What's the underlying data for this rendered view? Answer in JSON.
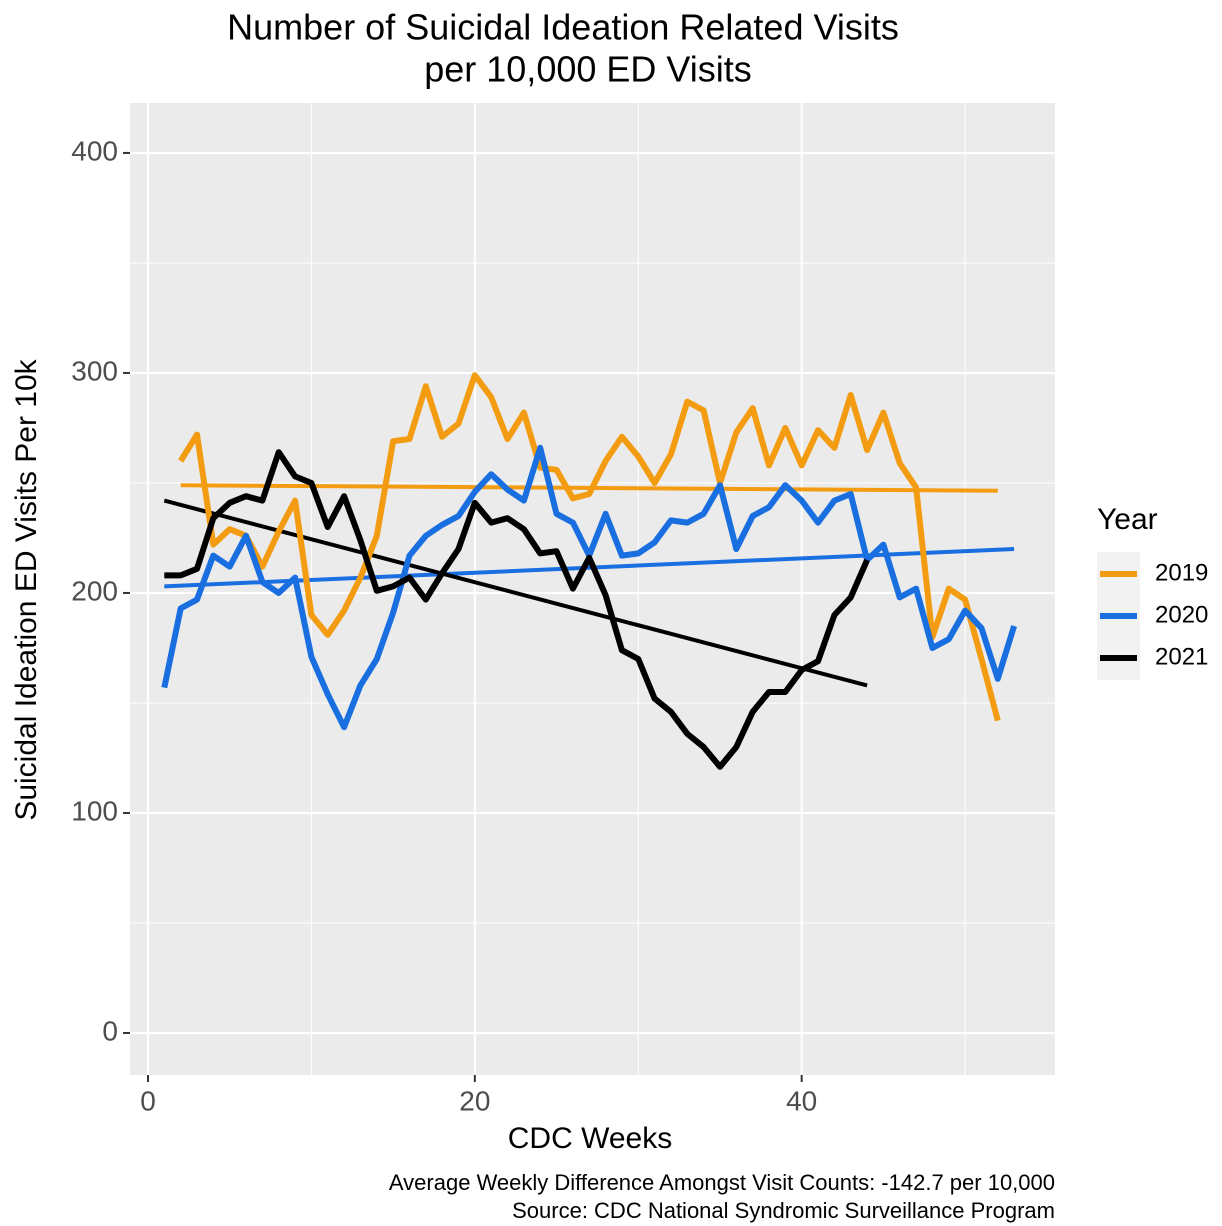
{
  "chart_data": {
    "type": "line",
    "title": [
      "Number of Suicidal Ideation Related Visits",
      "per 10,000 ED Visits"
    ],
    "x_label": "CDC Weeks",
    "y_label": "Suicidal Ideation ED Visits Per 10k",
    "caption": [
      "Average Weekly Difference Amongst Visit Counts: -142.7 per 10,000",
      "Source: CDC National Syndromic Surveillance Program"
    ],
    "legend_title": "Year",
    "legend_position": "right",
    "grid": true,
    "xlim": [
      -1.1,
      55.5
    ],
    "ylim": [
      -19.1,
      422.7
    ],
    "xticks": [
      0,
      20,
      40
    ],
    "yticks": [
      0,
      100,
      200,
      300,
      400
    ],
    "x_minor_ticks": [
      10,
      30,
      50
    ],
    "y_minor_ticks": [
      50,
      150,
      250,
      350
    ],
    "series": [
      {
        "name": "2019",
        "color": "#f39c12",
        "x": [
          2,
          3,
          4,
          5,
          6,
          7,
          8,
          9,
          10,
          11,
          12,
          13,
          14,
          15,
          16,
          17,
          18,
          19,
          20,
          21,
          22,
          23,
          24,
          25,
          26,
          27,
          28,
          29,
          30,
          31,
          32,
          33,
          34,
          35,
          36,
          37,
          38,
          39,
          40,
          41,
          42,
          43,
          44,
          45,
          46,
          47,
          48,
          49,
          50,
          51,
          52
        ],
        "values": [
          260,
          272,
          222,
          229,
          226,
          212,
          228,
          242,
          190,
          181,
          192,
          207,
          226,
          269,
          270,
          294,
          271,
          277,
          299,
          289,
          270,
          282,
          257,
          256,
          243,
          245,
          260,
          271,
          262,
          250,
          263,
          287,
          283,
          250,
          273,
          284,
          258,
          275,
          258,
          274,
          266,
          290,
          265,
          282,
          259,
          248,
          180,
          202,
          197,
          170,
          142
        ],
        "trend": {
          "x": [
            2,
            52
          ],
          "values": [
            249,
            246.5
          ]
        }
      },
      {
        "name": "2020",
        "color": "#1a6fe0",
        "x": [
          1,
          2,
          3,
          4,
          5,
          6,
          7,
          8,
          9,
          10,
          11,
          12,
          13,
          14,
          15,
          16,
          17,
          18,
          19,
          20,
          21,
          22,
          23,
          24,
          25,
          26,
          27,
          28,
          29,
          30,
          31,
          32,
          33,
          34,
          35,
          36,
          37,
          38,
          39,
          40,
          41,
          42,
          43,
          44,
          45,
          46,
          47,
          48,
          49,
          50,
          51,
          52,
          53
        ],
        "values": [
          157,
          193,
          197,
          217,
          212,
          226,
          205,
          200,
          207,
          171,
          154,
          139,
          158,
          170,
          191,
          217,
          226,
          231,
          235,
          246,
          254,
          247,
          242,
          266,
          236,
          232,
          217,
          236,
          217,
          218,
          223,
          233,
          232,
          236,
          249,
          220,
          235,
          239,
          249,
          242,
          232,
          242,
          245,
          215,
          222,
          198,
          202,
          175,
          179,
          192,
          184,
          161,
          185
        ],
        "trend": {
          "x": [
            1,
            53
          ],
          "values": [
            203,
            220
          ]
        }
      },
      {
        "name": "2021",
        "color": "#000000",
        "x": [
          1,
          2,
          3,
          4,
          5,
          6,
          7,
          8,
          9,
          10,
          11,
          12,
          13,
          14,
          15,
          16,
          17,
          18,
          19,
          20,
          21,
          22,
          23,
          24,
          25,
          26,
          27,
          28,
          29,
          30,
          31,
          32,
          33,
          34,
          35,
          36,
          37,
          38,
          39,
          40,
          41,
          42,
          43,
          44
        ],
        "values": [
          208,
          208,
          211,
          234,
          241,
          244,
          242,
          264,
          253,
          250,
          230,
          244,
          224,
          201,
          203,
          207,
          197,
          209,
          220,
          241,
          232,
          234,
          229,
          218,
          219,
          202,
          216,
          199,
          174,
          170,
          152,
          146,
          136,
          130,
          121,
          130,
          146,
          155,
          155,
          165,
          169,
          190,
          198,
          215
        ],
        "trend": {
          "x": [
            1,
            44
          ],
          "values": [
            242,
            158
          ]
        }
      }
    ]
  }
}
